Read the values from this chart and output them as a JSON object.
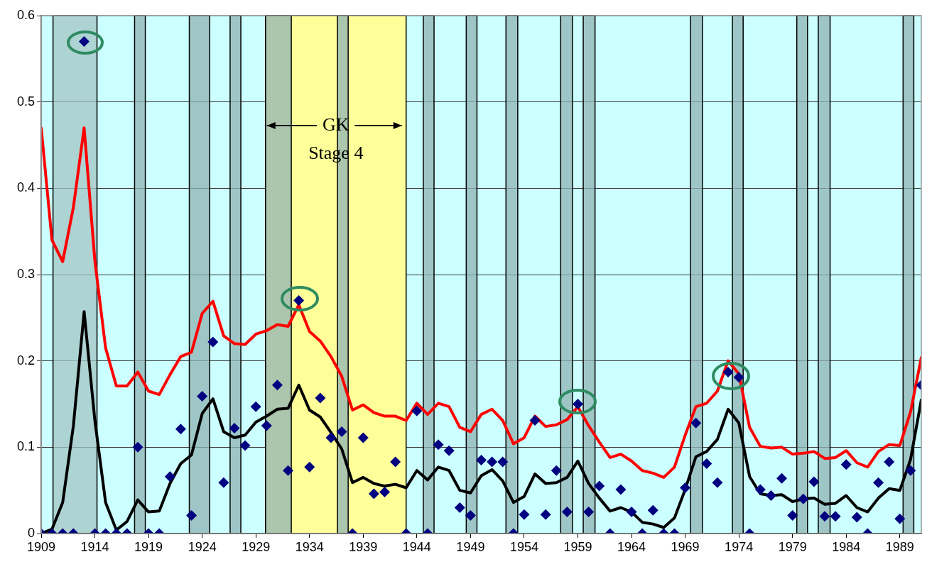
{
  "chart_data": {
    "type": "line",
    "x": [
      1909,
      1910,
      1911,
      1912,
      1913,
      1914,
      1915,
      1916,
      1917,
      1918,
      1919,
      1920,
      1921,
      1922,
      1923,
      1924,
      1925,
      1926,
      1927,
      1928,
      1929,
      1930,
      1931,
      1932,
      1933,
      1934,
      1935,
      1936,
      1937,
      1938,
      1939,
      1940,
      1941,
      1942,
      1943,
      1944,
      1945,
      1946,
      1947,
      1948,
      1949,
      1950,
      1951,
      1952,
      1953,
      1954,
      1955,
      1956,
      1957,
      1958,
      1959,
      1960,
      1961,
      1962,
      1963,
      1964,
      1965,
      1966,
      1967,
      1968,
      1969,
      1970,
      1971,
      1972,
      1973,
      1974,
      1975,
      1976,
      1977,
      1978,
      1979,
      1980,
      1981,
      1982,
      1983,
      1984,
      1985,
      1986,
      1987,
      1988,
      1989,
      1990,
      1991
    ],
    "series": [
      {
        "type": "line",
        "color": "#ff0000",
        "marker": "none",
        "values": [
          0.47,
          0.34,
          0.315,
          0.378,
          0.47,
          0.316,
          0.215,
          0.171,
          0.171,
          0.187,
          0.165,
          0.161,
          0.184,
          0.205,
          0.21,
          0.255,
          0.269,
          0.229,
          0.22,
          0.219,
          0.231,
          0.235,
          0.242,
          0.24,
          0.265,
          0.234,
          0.223,
          0.205,
          0.182,
          0.143,
          0.149,
          0.14,
          0.136,
          0.136,
          0.131,
          0.151,
          0.138,
          0.151,
          0.147,
          0.123,
          0.118,
          0.138,
          0.144,
          0.131,
          0.104,
          0.111,
          0.136,
          0.124,
          0.126,
          0.132,
          0.147,
          0.125,
          0.106,
          0.088,
          0.092,
          0.084,
          0.073,
          0.07,
          0.065,
          0.077,
          0.114,
          0.147,
          0.151,
          0.165,
          0.2,
          0.185,
          0.123,
          0.101,
          0.099,
          0.1,
          0.092,
          0.093,
          0.095,
          0.087,
          0.088,
          0.096,
          0.082,
          0.077,
          0.095,
          0.103,
          0.102,
          0.141,
          0.204
        ]
      },
      {
        "type": "line",
        "color": "#000000",
        "marker": "none",
        "values": [
          0,
          0.005,
          0.036,
          0.125,
          0.257,
          0.131,
          0.036,
          0.004,
          0.014,
          0.039,
          0.025,
          0.026,
          0.058,
          0.081,
          0.091,
          0.139,
          0.156,
          0.118,
          0.111,
          0.114,
          0.129,
          0.136,
          0.144,
          0.145,
          0.172,
          0.143,
          0.135,
          0.117,
          0.098,
          0.059,
          0.065,
          0.058,
          0.055,
          0.057,
          0.053,
          0.073,
          0.062,
          0.077,
          0.073,
          0.05,
          0.047,
          0.067,
          0.074,
          0.061,
          0.036,
          0.043,
          0.069,
          0.058,
          0.059,
          0.065,
          0.084,
          0.058,
          0.041,
          0.026,
          0.03,
          0.025,
          0.013,
          0.011,
          0.007,
          0.018,
          0.051,
          0.089,
          0.095,
          0.109,
          0.144,
          0.128,
          0.066,
          0.046,
          0.044,
          0.045,
          0.037,
          0.04,
          0.041,
          0.034,
          0.035,
          0.044,
          0.03,
          0.025,
          0.041,
          0.052,
          0.05,
          0.086,
          0.155
        ]
      },
      {
        "type": "scatter",
        "color": "#000080",
        "marker": "diamond",
        "values": [
          0,
          0,
          0,
          0,
          0.57,
          0,
          0,
          0,
          0,
          0.1,
          0,
          0,
          0.066,
          0.121,
          0.021,
          0.159,
          0.222,
          0.059,
          0.122,
          0.102,
          0.147,
          0.125,
          0.172,
          0.073,
          0.27,
          0.077,
          0.157,
          0.111,
          0.118,
          0,
          0.111,
          0.046,
          0.048,
          0.083,
          0,
          0.142,
          0,
          0.103,
          0.096,
          0.03,
          0.021,
          0.085,
          0.083,
          0.083,
          0,
          0.022,
          0.131,
          0.022,
          0.073,
          0.025,
          0.15,
          0.025,
          0.055,
          0,
          0.051,
          0.025,
          0,
          0.027,
          0,
          0,
          0.053,
          0.128,
          0.081,
          0.059,
          0.187,
          0.181,
          0,
          0.051,
          0.044,
          0.064,
          0.021,
          0.04,
          0.06,
          0.02,
          0.02,
          0.08,
          0.019,
          0,
          0.059,
          0.083,
          0.017,
          0.073,
          0.172
        ]
      }
    ],
    "xlim": [
      1909,
      1991
    ],
    "xticks": [
      1909,
      1914,
      1919,
      1924,
      1929,
      1934,
      1939,
      1944,
      1949,
      1954,
      1959,
      1964,
      1969,
      1974,
      1979,
      1984,
      1989
    ],
    "ylim": [
      0,
      0.6
    ],
    "yticks": [
      0,
      0.1,
      0.2,
      0.3,
      0.4,
      0.5,
      0.6
    ],
    "grid": "y",
    "bands": [
      {
        "axis": "x",
        "from": 1929.9,
        "to": 1943,
        "label": "GK Stage 4",
        "color": "#ffff99"
      },
      {
        "axis": "x",
        "from": 1910.1,
        "to": 1914.2,
        "color": "#a3c4c4"
      },
      {
        "axis": "x",
        "from": 1917.7,
        "to": 1918.7,
        "color": "#8fb3b3"
      },
      {
        "axis": "x",
        "from": 1922.8,
        "to": 1924.7,
        "color": "#8fb3b3"
      },
      {
        "axis": "x",
        "from": 1926.6,
        "to": 1927.6,
        "color": "#8fb3b3"
      },
      {
        "axis": "x",
        "from": 1929.9,
        "to": 1932.3,
        "color": "#8fb3b3"
      },
      {
        "axis": "x",
        "from": 1936.6,
        "to": 1937.6,
        "color": "#8fb3b3"
      },
      {
        "axis": "x",
        "from": 1944.6,
        "to": 1945.6,
        "color": "#8fb3b3"
      },
      {
        "axis": "x",
        "from": 1948.6,
        "to": 1949.6,
        "color": "#8fb3b3"
      },
      {
        "axis": "x",
        "from": 1952.3,
        "to": 1953.4,
        "color": "#8fb3b3"
      },
      {
        "axis": "x",
        "from": 1957.4,
        "to": 1958.5,
        "color": "#8fb3b3"
      },
      {
        "axis": "x",
        "from": 1959.5,
        "to": 1960.6,
        "color": "#8fb3b3"
      },
      {
        "axis": "x",
        "from": 1969.5,
        "to": 1970.6,
        "color": "#8fb3b3"
      },
      {
        "axis": "x",
        "from": 1973.4,
        "to": 1974.4,
        "color": "#8fb3b3"
      },
      {
        "axis": "x",
        "from": 1979.4,
        "to": 1980.4,
        "color": "#8fb3b3"
      },
      {
        "axis": "x",
        "from": 1981.4,
        "to": 1982.5,
        "color": "#8fb3b3"
      },
      {
        "axis": "x",
        "from": 1989.3,
        "to": 1990.3,
        "color": "#8fb3b3"
      }
    ]
  }
}
